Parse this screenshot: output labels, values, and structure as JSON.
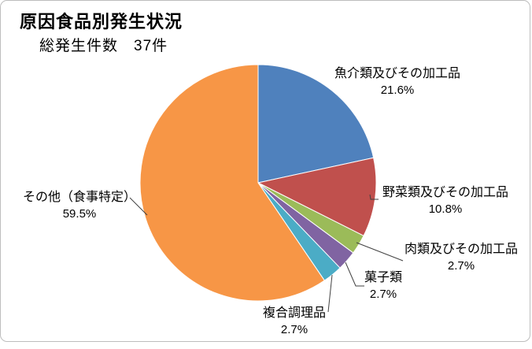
{
  "chart": {
    "title": "原因食品別発生状況",
    "subtitle": "総発生件数　37件"
  },
  "chart_data": {
    "type": "pie",
    "title": "原因食品別発生状況",
    "subtitle": "総発生件数　37件",
    "total_cases": 37,
    "total_cases_unit": "件",
    "categories": [
      "魚介類及びその加工品",
      "野菜類及びその加工品",
      "肉類及びその加工品",
      "菓子類",
      "複合調理品",
      "その他（食事特定）"
    ],
    "values": [
      21.6,
      10.8,
      2.7,
      2.7,
      2.7,
      59.5
    ],
    "unit": "%",
    "colors": [
      "#4F81BD",
      "#C0504D",
      "#9BBB59",
      "#8064A2",
      "#4BACC6",
      "#F79646"
    ],
    "start_angle_deg": 0,
    "direction": "clockwise",
    "legend": "none",
    "label_style": "category name with percentage, outside with leader lines",
    "labels": [
      {
        "name": "魚介類及びその加工品",
        "pct": "21.6%"
      },
      {
        "name": "野菜類及びその加工品",
        "pct": "10.8%"
      },
      {
        "name": "肉類及びその加工品",
        "pct": "2.7%"
      },
      {
        "name": "菓子類",
        "pct": "2.7%"
      },
      {
        "name": "複合調理品",
        "pct": "2.7%"
      },
      {
        "name": "その他（食事特定）",
        "pct": "59.5%"
      }
    ]
  }
}
